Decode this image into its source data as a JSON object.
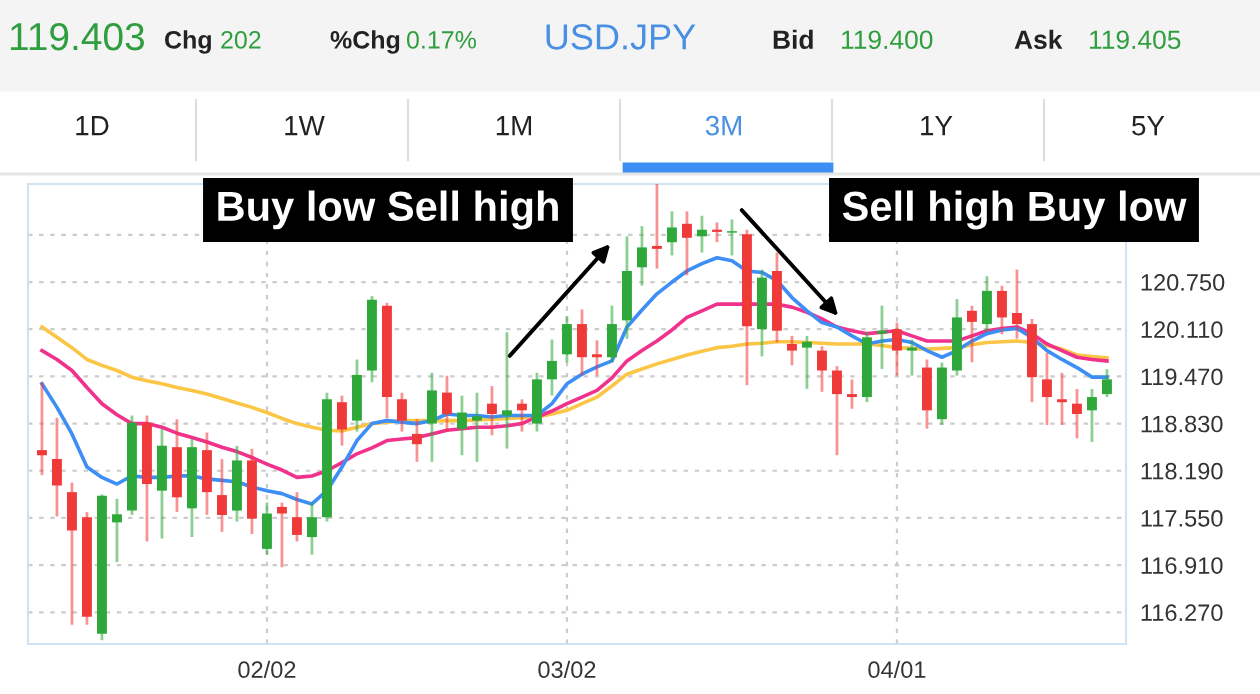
{
  "chart_data": {
    "type": "candlestick",
    "categories": [
      null,
      null,
      null,
      null,
      null,
      null,
      null,
      null,
      null,
      null,
      null,
      null,
      null,
      null,
      null,
      "02/02",
      null,
      null,
      null,
      null,
      null,
      null,
      null,
      null,
      null,
      null,
      null,
      null,
      null,
      null,
      null,
      null,
      null,
      null,
      null,
      "03/02",
      null,
      null,
      null,
      null,
      null,
      null,
      null,
      null,
      null,
      null,
      null,
      null,
      null,
      null,
      null,
      null,
      null,
      null,
      null,
      null,
      null,
      "04/01",
      null,
      null,
      null,
      null,
      null,
      null,
      null,
      null,
      null,
      null,
      null,
      null,
      null,
      null
    ],
    "ohlc": [
      [
        118.47,
        119.37,
        118.15,
        118.4
      ],
      [
        118.35,
        118.89,
        117.59,
        117.99
      ],
      [
        117.9,
        118.01,
        116.12,
        117.38
      ],
      [
        117.56,
        117.61,
        116.12,
        116.21
      ],
      [
        115.98,
        117.85,
        115.91,
        117.85
      ],
      [
        117.49,
        117.79,
        116.97,
        117.6
      ],
      [
        117.65,
        118.92,
        117.61,
        118.84
      ],
      [
        118.84,
        118.92,
        117.25,
        118.01
      ],
      [
        117.92,
        118.74,
        117.29,
        118.53
      ],
      [
        118.51,
        118.87,
        117.65,
        117.83
      ],
      [
        117.68,
        118.6,
        117.31,
        118.51
      ],
      [
        118.47,
        118.69,
        117.61,
        117.9
      ],
      [
        117.86,
        118.33,
        117.38,
        117.59
      ],
      [
        117.65,
        118.51,
        117.52,
        118.33
      ],
      [
        118.33,
        118.47,
        117.35,
        117.54
      ],
      [
        117.13,
        117.74,
        117.07,
        117.61
      ],
      [
        117.7,
        117.74,
        116.9,
        117.61
      ],
      [
        117.56,
        117.88,
        117.25,
        117.32
      ],
      [
        117.29,
        117.74,
        117.07,
        117.56
      ],
      [
        117.56,
        119.23,
        117.52,
        119.16
      ],
      [
        119.12,
        119.19,
        118.55,
        118.75
      ],
      [
        118.87,
        119.68,
        118.74,
        119.49
      ],
      [
        119.55,
        120.54,
        119.41,
        120.51
      ],
      [
        120.43,
        120.45,
        118.92,
        119.19
      ],
      [
        119.16,
        119.23,
        118.74,
        118.87
      ],
      [
        118.69,
        118.87,
        118.33,
        118.55
      ],
      [
        118.83,
        119.5,
        118.33,
        119.28
      ],
      [
        119.25,
        119.46,
        118.74,
        118.96
      ],
      [
        118.76,
        119.19,
        118.42,
        118.98
      ],
      [
        118.87,
        119.23,
        118.33,
        118.93
      ],
      [
        119.1,
        119.32,
        118.69,
        118.96
      ],
      [
        118.94,
        120.05,
        118.51,
        119.01
      ],
      [
        119.1,
        119.14,
        118.74,
        119.01
      ],
      [
        118.83,
        119.5,
        118.74,
        119.43
      ],
      [
        119.43,
        119.95,
        119.23,
        119.68
      ],
      [
        119.77,
        120.27,
        119.68,
        120.18
      ],
      [
        120.18,
        120.36,
        119.5,
        119.73
      ],
      [
        119.77,
        119.94,
        119.5,
        119.73
      ],
      [
        119.73,
        120.41,
        119.68,
        120.18
      ],
      [
        120.23,
        121.35,
        120.0,
        120.9
      ],
      [
        120.95,
        121.49,
        120.72,
        121.22
      ],
      [
        121.24,
        122.08,
        120.95,
        121.2
      ],
      [
        121.29,
        121.69,
        121.13,
        121.49
      ],
      [
        121.54,
        121.69,
        120.86,
        121.35
      ],
      [
        121.37,
        121.63,
        121.17,
        121.46
      ],
      [
        121.46,
        121.54,
        121.31,
        121.43
      ],
      [
        121.42,
        121.58,
        121.13,
        121.44
      ],
      [
        121.4,
        121.44,
        119.37,
        120.15
      ],
      [
        120.11,
        120.9,
        119.76,
        120.81
      ],
      [
        120.9,
        121.13,
        119.95,
        120.09
      ],
      [
        119.91,
        120.0,
        119.64,
        119.82
      ],
      [
        119.86,
        120.0,
        119.32,
        119.94
      ],
      [
        119.82,
        119.86,
        119.28,
        119.55
      ],
      [
        119.55,
        119.59,
        118.42,
        119.23
      ],
      [
        119.23,
        119.41,
        119.05,
        119.19
      ],
      [
        119.19,
        120.05,
        119.14,
        120.0
      ],
      [
        120.05,
        120.41,
        119.59,
        120.09
      ],
      [
        120.11,
        120.18,
        119.5,
        119.82
      ],
      [
        119.82,
        119.95,
        119.5,
        119.86
      ],
      [
        119.59,
        119.68,
        118.78,
        119.01
      ],
      [
        118.89,
        119.64,
        118.83,
        119.59
      ],
      [
        119.55,
        120.5,
        119.5,
        120.27
      ],
      [
        120.36,
        120.41,
        119.68,
        120.21
      ],
      [
        120.18,
        120.81,
        120.09,
        120.63
      ],
      [
        120.63,
        120.68,
        120.06,
        120.27
      ],
      [
        120.33,
        120.9,
        120.0,
        120.18
      ],
      [
        120.18,
        120.23,
        119.14,
        119.46
      ],
      [
        119.43,
        119.77,
        118.83,
        119.19
      ],
      [
        119.16,
        119.5,
        118.83,
        119.12
      ],
      [
        119.1,
        119.28,
        118.65,
        118.96
      ],
      [
        119.01,
        119.28,
        118.6,
        119.19
      ],
      [
        119.23,
        119.55,
        119.21,
        119.43
      ]
    ],
    "colors": [
      "#f03a3a",
      "#f03a3a",
      "#f03a3a",
      "#f03a3a",
      "#2ea83a",
      "#2ea83a",
      "#2ea83a",
      "#f03a3a",
      "#2ea83a",
      "#f03a3a",
      "#2ea83a",
      "#f03a3a",
      "#f03a3a",
      "#2ea83a",
      "#f03a3a",
      "#2ea83a",
      "#f03a3a",
      "#f03a3a",
      "#2ea83a",
      "#2ea83a",
      "#f03a3a",
      "#2ea83a",
      "#2ea83a",
      "#f03a3a",
      "#f03a3a",
      "#f03a3a",
      "#2ea83a",
      "#f03a3a",
      "#2ea83a",
      "#2ea83a",
      "#f03a3a",
      "#2ea83a",
      "#f03a3a",
      "#2ea83a",
      "#2ea83a",
      "#2ea83a",
      "#f03a3a",
      "#f03a3a",
      "#2ea83a",
      "#2ea83a",
      "#2ea83a",
      "#f03a3a",
      "#2ea83a",
      "#f03a3a",
      "#2ea83a",
      "#f03a3a",
      "#2ea83a",
      "#f03a3a",
      "#2ea83a",
      "#f03a3a",
      "#f03a3a",
      "#2ea83a",
      "#f03a3a",
      "#f03a3a",
      "#f03a3a",
      "#2ea83a",
      "#2ea83a",
      "#f03a3a",
      "#2ea83a",
      "#f03a3a",
      "#2ea83a",
      "#2ea83a",
      "#f03a3a",
      "#2ea83a",
      "#f03a3a",
      "#f03a3a",
      "#f03a3a",
      "#f03a3a",
      "#f03a3a",
      "#f03a3a",
      "#2ea83a",
      "#2ea83a"
    ],
    "series": [
      {
        "type": "line",
        "color": "#fbc545",
        "values": [
          120.14,
          120.0,
          119.86,
          119.7,
          119.62,
          119.55,
          119.46,
          119.41,
          119.37,
          119.32,
          119.28,
          119.23,
          119.17,
          119.11,
          119.05,
          118.98,
          118.9,
          118.83,
          118.78,
          118.74,
          118.73,
          118.78,
          118.83,
          118.85,
          118.87,
          118.87,
          118.87,
          118.87,
          118.87,
          118.88,
          118.89,
          118.9,
          118.91,
          118.92,
          118.96,
          119.01,
          119.1,
          119.19,
          119.34,
          119.5,
          119.57,
          119.64,
          119.7,
          119.76,
          119.81,
          119.86,
          119.88,
          119.91,
          119.92,
          119.94,
          119.94,
          119.93,
          119.92,
          119.91,
          119.91,
          119.91,
          119.89,
          119.86,
          119.85,
          119.84,
          119.85,
          119.86,
          119.9,
          119.93,
          119.94,
          119.95,
          119.93,
          119.89,
          119.84,
          119.76,
          119.74,
          119.72
        ]
      },
      {
        "type": "line",
        "color": "#f0328c",
        "values": [
          119.82,
          119.7,
          119.55,
          119.32,
          119.1,
          118.95,
          118.83,
          118.83,
          118.78,
          118.7,
          118.64,
          118.58,
          118.51,
          118.45,
          118.37,
          118.28,
          118.2,
          118.1,
          118.12,
          118.19,
          118.3,
          118.42,
          118.5,
          118.6,
          118.62,
          118.64,
          118.69,
          118.74,
          118.76,
          118.78,
          118.78,
          118.8,
          118.83,
          118.92,
          119.0,
          119.1,
          119.19,
          119.28,
          119.45,
          119.68,
          119.82,
          119.95,
          120.1,
          120.27,
          120.36,
          120.45,
          120.45,
          120.45,
          120.45,
          120.45,
          120.41,
          120.34,
          120.25,
          120.14,
          120.09,
          120.05,
          120.07,
          120.09,
          120.02,
          119.95,
          119.95,
          119.95,
          120.02,
          120.09,
          120.12,
          120.14,
          120.05,
          119.91,
          119.82,
          119.73,
          119.7,
          119.68
        ]
      },
      {
        "type": "line",
        "color": "#3d8ff5",
        "values": [
          119.37,
          119.05,
          118.69,
          118.24,
          118.1,
          118.01,
          118.12,
          118.1,
          118.1,
          118.12,
          118.12,
          118.08,
          118.06,
          118.04,
          117.97,
          117.92,
          117.88,
          117.8,
          117.74,
          117.92,
          118.24,
          118.6,
          118.83,
          118.87,
          118.85,
          118.83,
          118.87,
          118.96,
          118.94,
          118.94,
          118.92,
          118.94,
          118.94,
          118.94,
          119.1,
          119.37,
          119.5,
          119.6,
          119.68,
          120.14,
          120.37,
          120.59,
          120.75,
          120.9,
          121.0,
          121.08,
          121.04,
          120.9,
          120.88,
          120.77,
          120.54,
          120.36,
          120.2,
          120.14,
          120.02,
          119.91,
          119.95,
          119.97,
          119.93,
          119.82,
          119.73,
          119.82,
          119.95,
          120.05,
          120.1,
          120.12,
          120.0,
          119.82,
          119.7,
          119.59,
          119.46,
          119.46
        ]
      }
    ],
    "ylim": [
      115.84,
      122.08
    ],
    "yticks": [
      {
        "value": 116.27,
        "label": "116.270"
      },
      {
        "value": 116.91,
        "label": "116.910"
      },
      {
        "value": 117.55,
        "label": "117.550"
      },
      {
        "value": 118.19,
        "label": "118.190"
      },
      {
        "value": 118.83,
        "label": "118.830"
      },
      {
        "value": 119.47,
        "label": "119.470"
      },
      {
        "value": 120.11,
        "label": "120.110"
      },
      {
        "value": 120.75,
        "label": "120.750"
      },
      {
        "value": 121.39,
        "label": null
      }
    ],
    "grid": true,
    "annotations": [
      "119.403",
      "Chg",
      "202",
      "%Chg",
      "0.17%",
      "USD.JPY",
      "Bid",
      "119.400",
      "Ask",
      "119.405",
      "1D",
      "1W",
      "1M",
      "3M",
      "1Y",
      "5Y",
      "Buy low Sell high",
      "Sell high Buy low"
    ]
  }
}
